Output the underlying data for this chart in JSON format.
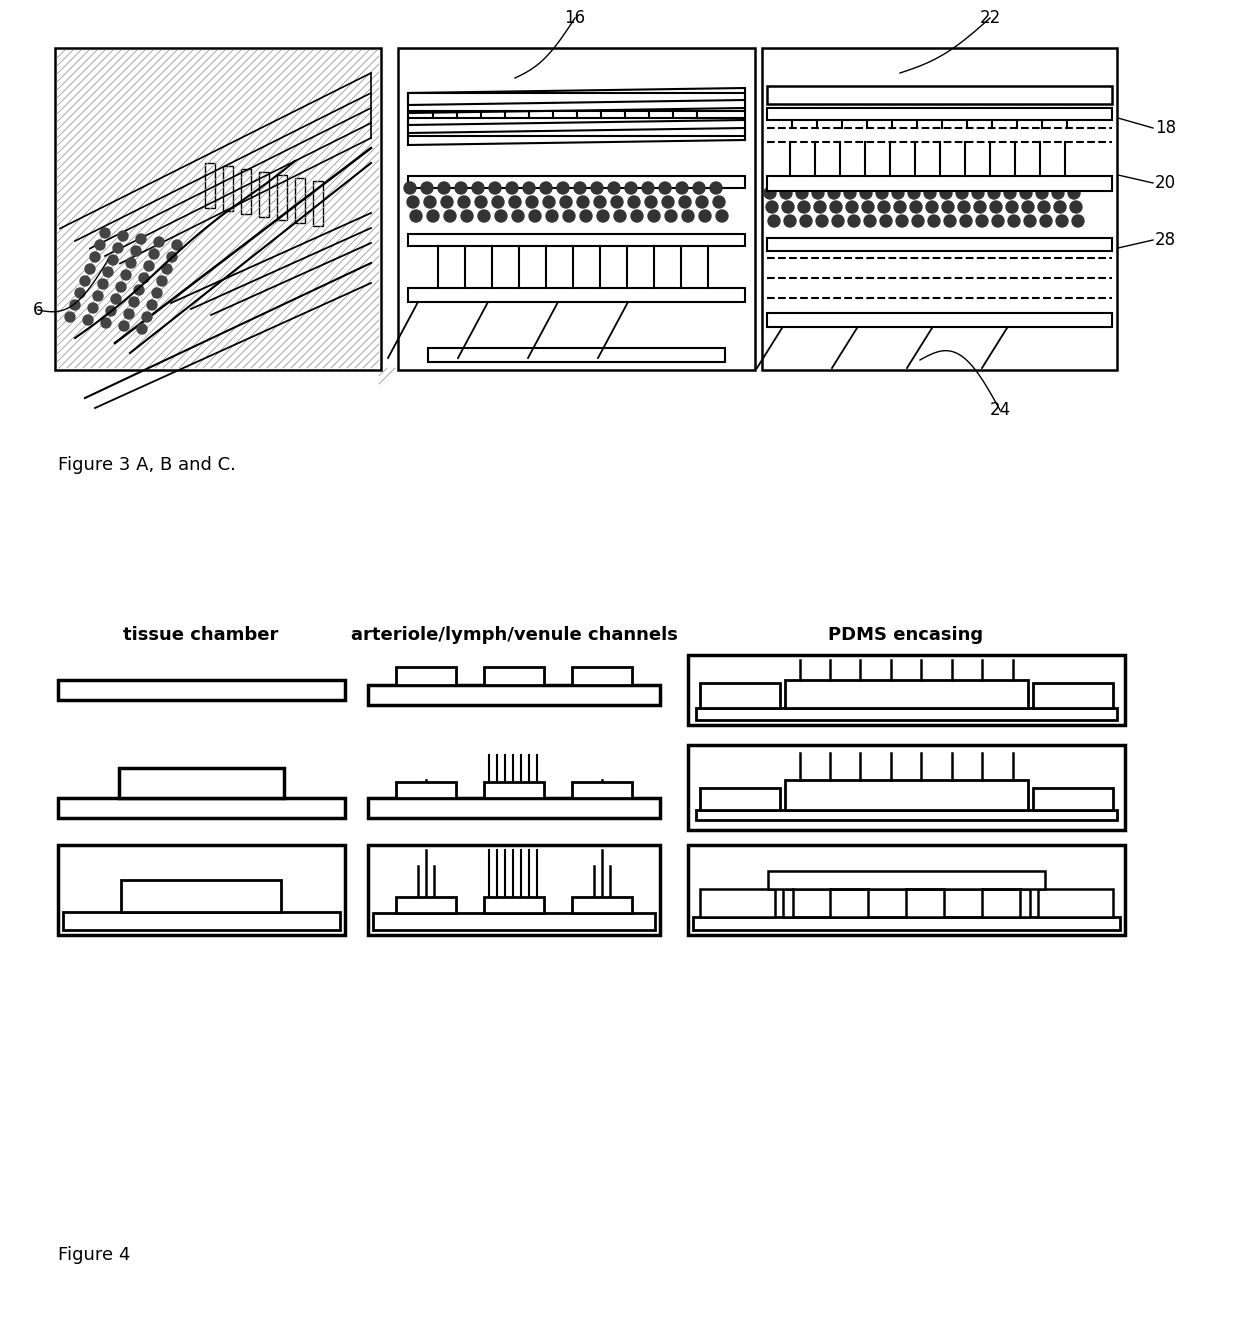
{
  "fig_caption_1": "Figure 3 A, B and C.",
  "fig_caption_2": "Figure 4",
  "label_6": "6",
  "label_16": "16",
  "label_18": "18",
  "label_20": "20",
  "label_22": "22",
  "label_24": "24",
  "label_28": "28",
  "col1_title": "tissue chamber",
  "col2_title": "arteriole/lymph/venule channels",
  "col3_title": "PDMS encasing",
  "bg_color": "#ffffff",
  "line_color": "#000000",
  "fig_width": 12.4,
  "fig_height": 13.39,
  "dpi": 100
}
